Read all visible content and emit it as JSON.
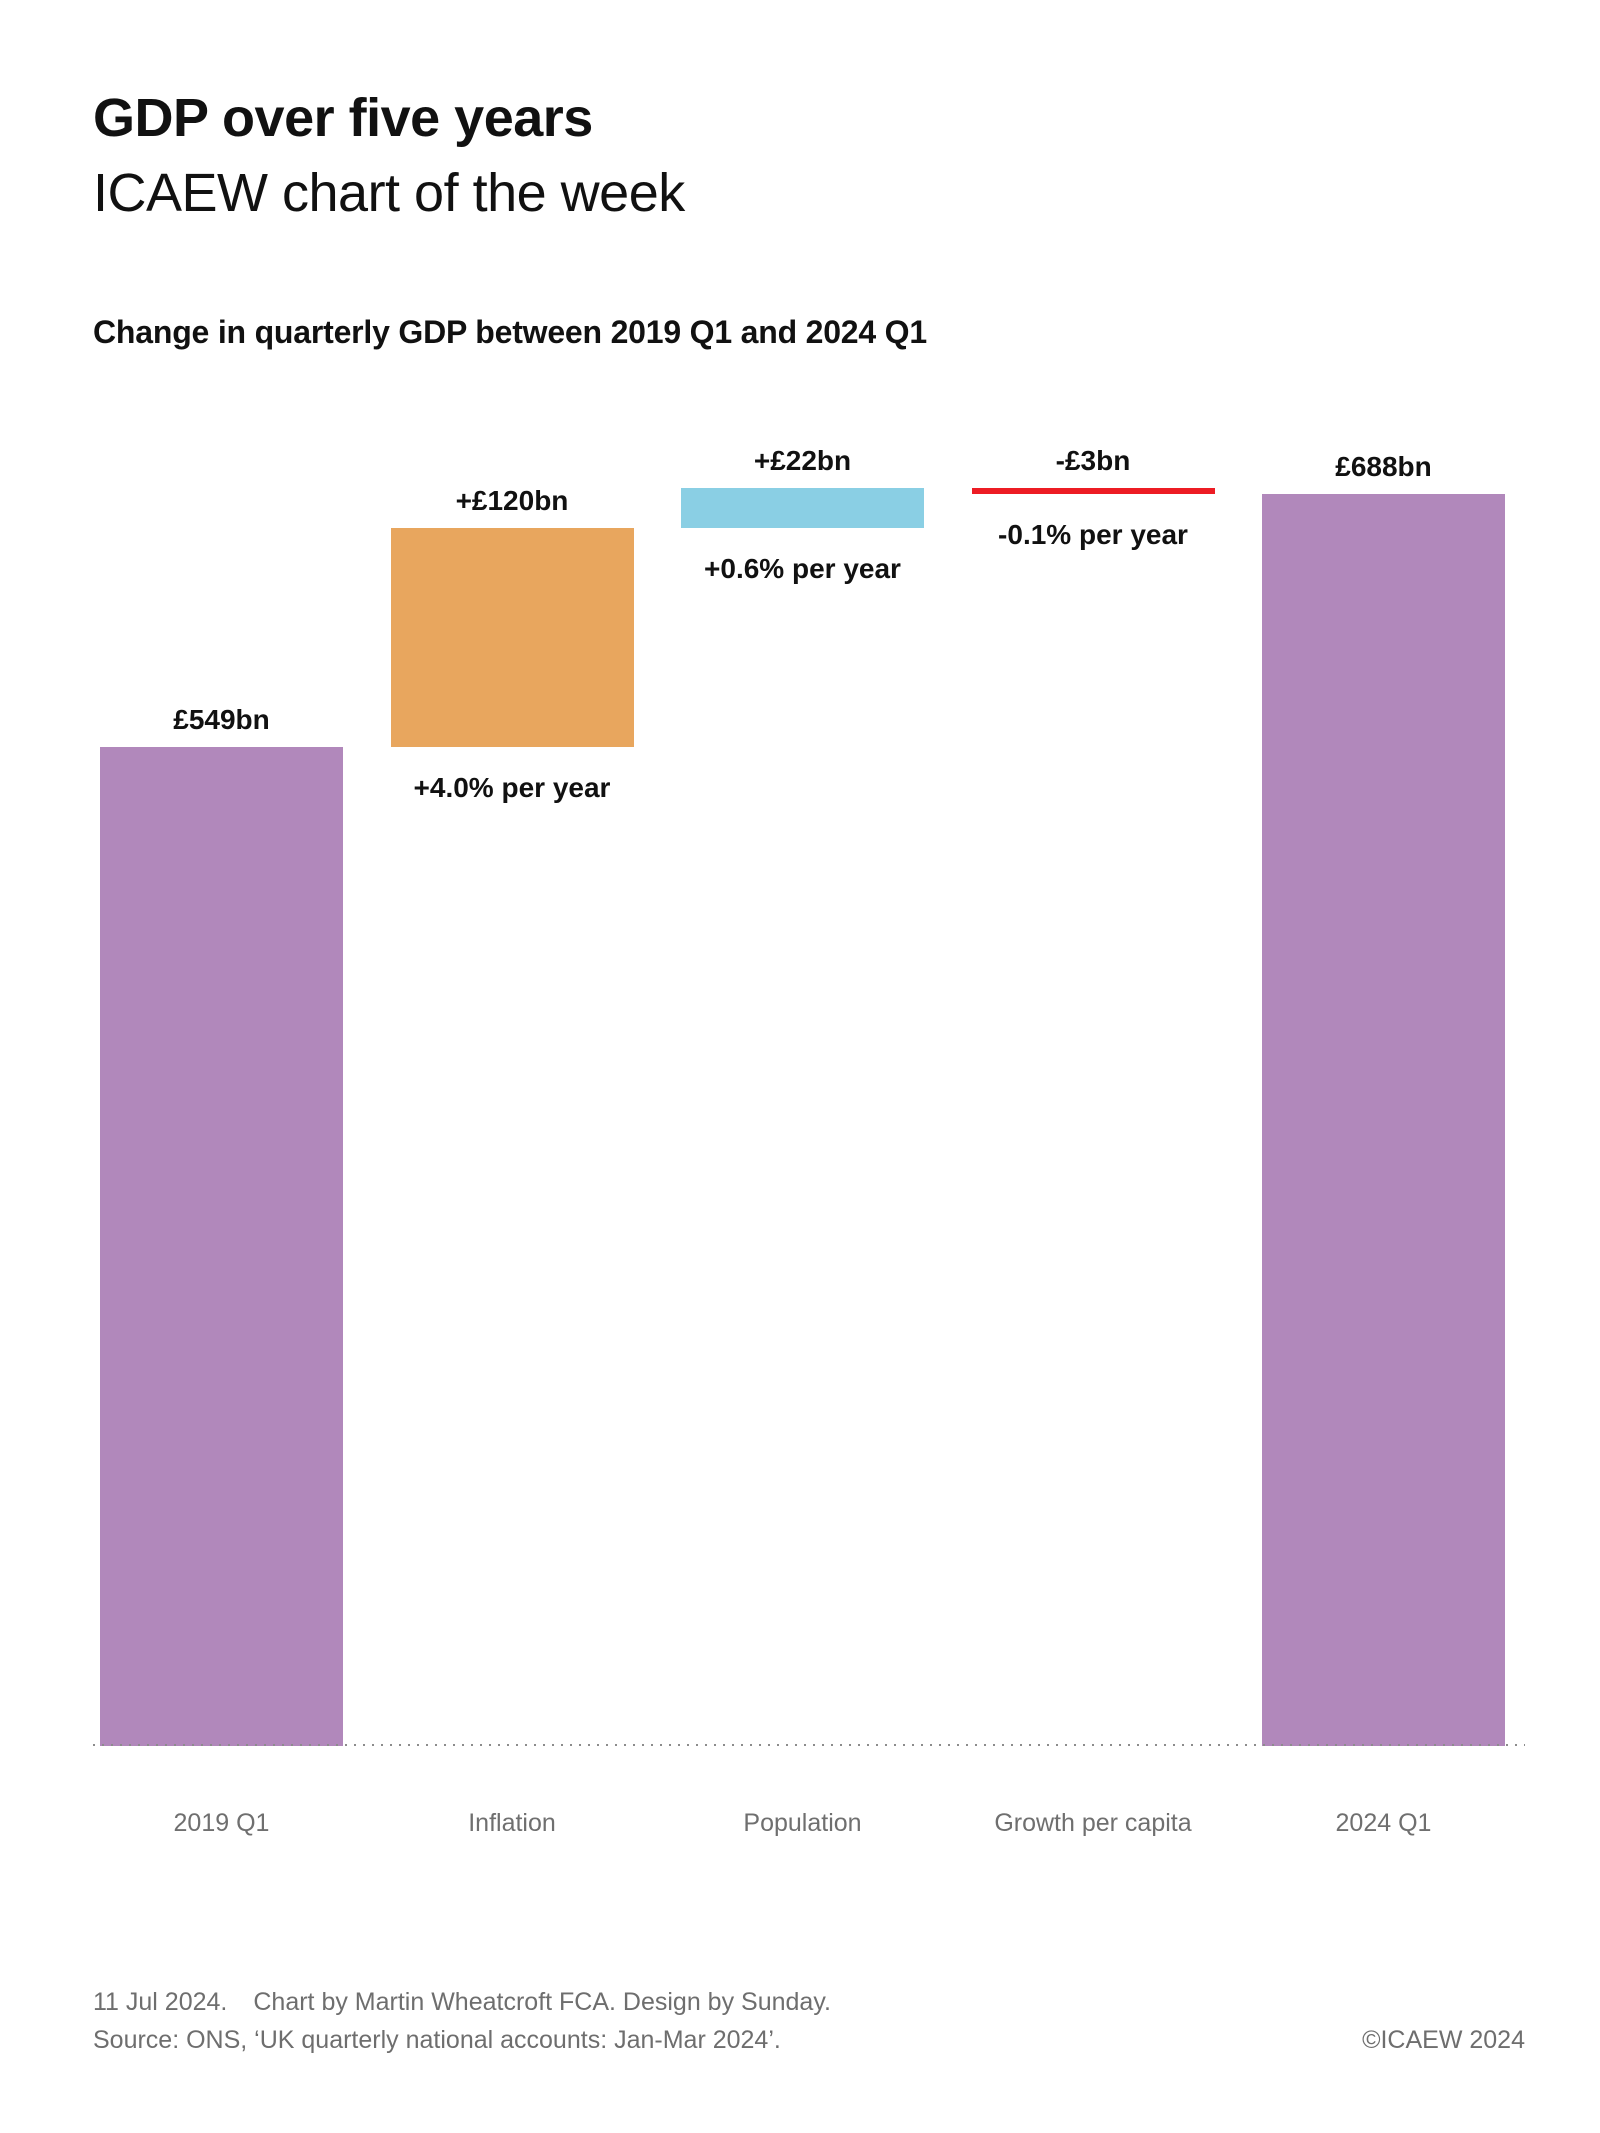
{
  "header": {
    "title": "GDP over five years",
    "subtitle": "ICAEW chart of the week"
  },
  "description": "Change in quarterly GDP between 2019 Q1 and 2024 Q1",
  "chart_data": {
    "type": "bar",
    "subtype": "waterfall",
    "title": "Change in quarterly GDP between 2019 Q1 and 2024 Q1",
    "unit": "GBP billions",
    "categories": [
      "2019 Q1",
      "Inflation",
      "Population",
      "Growth per capita",
      "2024 Q1"
    ],
    "ylim": [
      0,
      691
    ],
    "grid": false,
    "baseline_style": "dotted",
    "bars": [
      {
        "category": "2019 Q1",
        "from": 0,
        "to": 549,
        "value_label": "£549bn",
        "rate_label": "",
        "color": "#B188BB",
        "shape": "bar"
      },
      {
        "category": "Inflation",
        "from": 549,
        "to": 669,
        "value_label": "+£120bn",
        "rate_label": "+4.0% per year",
        "color": "#E8A65E",
        "shape": "bar"
      },
      {
        "category": "Population",
        "from": 669,
        "to": 691,
        "value_label": "+£22bn",
        "rate_label": "+0.6% per year",
        "color": "#8ACFE4",
        "shape": "bar"
      },
      {
        "category": "Growth per capita",
        "from": 691,
        "to": 688,
        "value_label": "-£3bn",
        "rate_label": "-0.1% per year",
        "color": "#ED1C24",
        "shape": "line"
      },
      {
        "category": "2024 Q1",
        "from": 0,
        "to": 688,
        "value_label": "£688bn",
        "rate_label": "",
        "color": "#B188BB",
        "shape": "bar"
      }
    ],
    "colors": {
      "level_bar": "#B188BB",
      "inflation_bar": "#E8A65E",
      "population_bar": "#8ACFE4",
      "negative_line": "#ED1C24",
      "label_text": "#111111",
      "category_text": "#6F6F6F"
    }
  },
  "footer": {
    "date": "11 Jul 2024.",
    "credit": "Chart by Martin Wheatcroft FCA. Design by Sunday.",
    "source": "Source: ONS, ‘UK quarterly national accounts: Jan-Mar 2024’.",
    "copyright": "©ICAEW 2024"
  }
}
